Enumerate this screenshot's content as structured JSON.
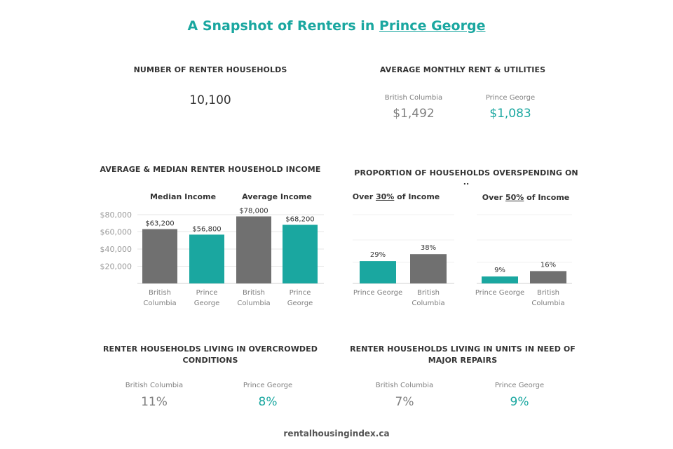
{
  "title": {
    "prefix": "A Snapshot of Renters in ",
    "place": "Prince George"
  },
  "renter_households": {
    "heading": "NUMBER OF RENTER HOUSEHOLDS",
    "value": "10,100"
  },
  "rent": {
    "heading": "AVERAGE MONTHLY RENT & UTILITIES",
    "bc_label": "British Columbia",
    "bc_value": "$1,492",
    "pg_label": "Prince George",
    "pg_value": "$1,083"
  },
  "income": {
    "heading": "AVERAGE & MEDIAN RENTER HOUSEHOLD INCOME",
    "median_label": "Median Income",
    "average_label": "Average Income"
  },
  "overspending": {
    "heading": "PROPORTION OF HOUSEHOLDS OVERSPENDING ON ..",
    "over30": {
      "pre": "Over ",
      "pct": "30%",
      "post": " of Income"
    },
    "over50": {
      "pre": "Over ",
      "pct": "50%",
      "post": " of Income"
    }
  },
  "overcrowded": {
    "heading_line1": "RENTER HOUSEHOLDS LIVING IN OVERCROWDED",
    "heading_line2": "CONDITIONS",
    "bc_label": "British Columbia",
    "bc_value": "11%",
    "pg_label": "Prince George",
    "pg_value": "8%"
  },
  "repairs": {
    "heading_line1": "RENTER HOUSEHOLDS LIVING IN UNITS IN NEED OF",
    "heading_line2": "MAJOR REPAIRS",
    "bc_label": "British Columbia",
    "bc_value": "7%",
    "pg_label": "Prince George",
    "pg_value": "9%"
  },
  "footer": "rentalhousingindex.ca",
  "colors": {
    "grey": "#707070",
    "teal": "#1aa7a0",
    "grid": "#e6e6e6"
  },
  "chart_data": [
    {
      "type": "bar",
      "id": "income",
      "panels": [
        {
          "title": "Median Income",
          "categories": [
            [
              "British",
              "Columbia"
            ],
            [
              "Prince",
              "George"
            ]
          ],
          "values": [
            63200,
            56800
          ],
          "labels": [
            "$63,200",
            "$56,800"
          ],
          "colors": [
            "#707070",
            "#1aa7a0"
          ]
        },
        {
          "title": "Average Income",
          "categories": [
            [
              "British",
              "Columbia"
            ],
            [
              "Prince",
              "George"
            ]
          ],
          "values": [
            78000,
            68200
          ],
          "labels": [
            "$78,000",
            "$68,200"
          ],
          "colors": [
            "#707070",
            "#1aa7a0"
          ]
        }
      ],
      "yticks": [
        20000,
        40000,
        60000,
        80000
      ],
      "ytick_labels": [
        "$20,000",
        "$40,000",
        "$60,000",
        "$80,000"
      ],
      "ylim": [
        0,
        80000
      ],
      "grid": true
    },
    {
      "type": "bar",
      "id": "overspending",
      "panels": [
        {
          "title": "Over 30% of Income",
          "categories": [
            [
              "Prince George"
            ],
            [
              "British",
              "Columbia"
            ]
          ],
          "values": [
            29,
            38
          ],
          "labels": [
            "29%",
            "38%"
          ],
          "colors": [
            "#1aa7a0",
            "#707070"
          ]
        },
        {
          "title": "Over 50% of Income",
          "categories": [
            [
              "Prince George"
            ],
            [
              "British",
              "Columbia"
            ]
          ],
          "values": [
            9,
            16
          ],
          "labels": [
            "9%",
            "16%"
          ],
          "colors": [
            "#1aa7a0",
            "#707070"
          ]
        }
      ],
      "ylim": [
        0,
        100
      ],
      "grid": true
    }
  ]
}
